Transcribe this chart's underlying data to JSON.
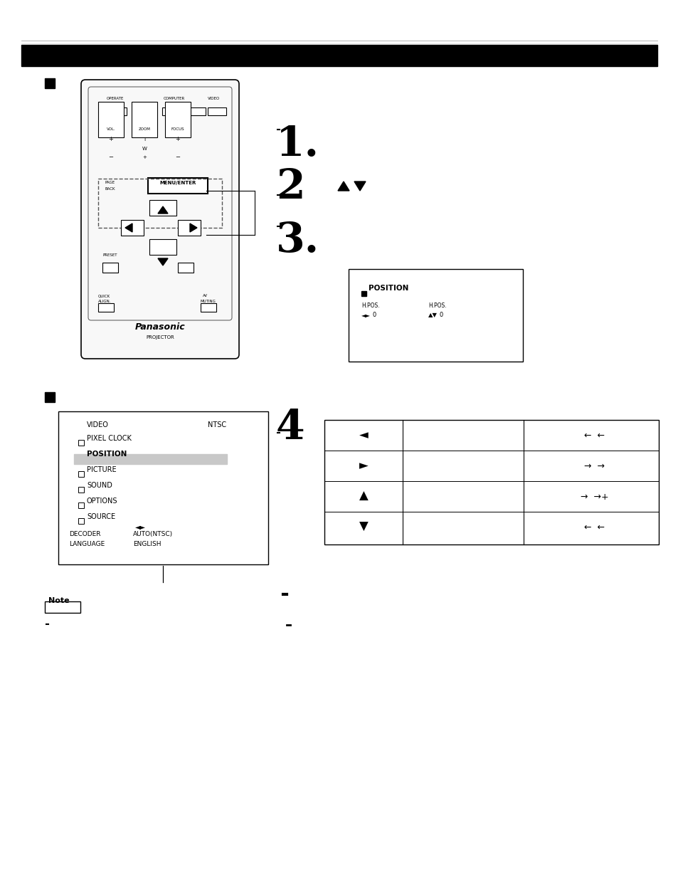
{
  "bg_color": "#ffffff",
  "header_bar_color": "#000000",
  "step1_num": "1.",
  "step2_num": "2",
  "step3_num": "3.",
  "step4_num": "4",
  "note_label": "Note",
  "menu_items": [
    "PIXEL CLOCK",
    "POSITION",
    "PICTURE",
    "SOUND",
    "OPTIONS",
    "SOURCE"
  ],
  "position_box_title": "POSITION",
  "table_arrows": [
    "◄",
    "►",
    "▲",
    "▼"
  ],
  "table_effects_left": [
    "←  ←",
    "→  →",
    "→  →+",
    "←  ←"
  ]
}
